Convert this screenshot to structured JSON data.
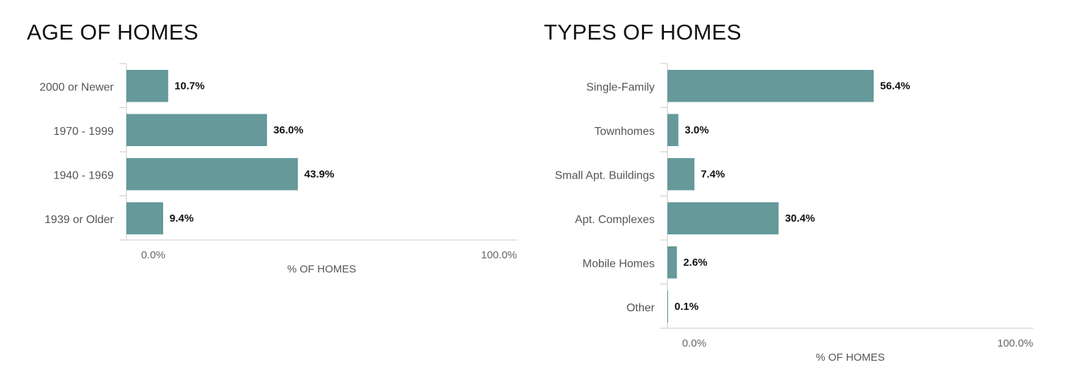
{
  "chart_data": [
    {
      "type": "bar",
      "orientation": "horizontal",
      "title": "AGE OF HOMES",
      "categories": [
        "2000 or Newer",
        "1970 - 1999",
        "1940 - 1969",
        "1939 or Older"
      ],
      "values": [
        10.7,
        36.0,
        43.9,
        9.4
      ],
      "value_labels": [
        "10.7%",
        "36.0%",
        "43.9%",
        "9.4%"
      ],
      "xlabel": "% OF HOMES",
      "xlim": [
        0,
        100
      ],
      "x_tick_labels": [
        "0.0%",
        "100.0%"
      ],
      "bar_color": "#65999a",
      "grid": false,
      "legend": "none"
    },
    {
      "type": "bar",
      "orientation": "horizontal",
      "title": "TYPES OF HOMES",
      "categories": [
        "Single-Family",
        "Townhomes",
        "Small Apt. Buildings",
        "Apt. Complexes",
        "Mobile Homes",
        "Other"
      ],
      "values": [
        56.4,
        3.0,
        7.4,
        30.4,
        2.6,
        0.1
      ],
      "value_labels": [
        "56.4%",
        "3.0%",
        "7.4%",
        "30.4%",
        "2.6%",
        "0.1%"
      ],
      "xlabel": "% OF HOMES",
      "xlim": [
        0,
        100
      ],
      "x_tick_labels": [
        "0.0%",
        "100.0%"
      ],
      "bar_color": "#65999a",
      "grid": false,
      "legend": "none"
    }
  ]
}
